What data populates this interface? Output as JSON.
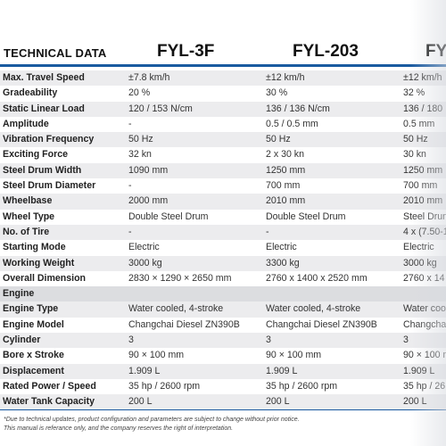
{
  "header": {
    "label": "TECHNICAL DATA",
    "models": [
      "FYL-3F",
      "FYL-203",
      "FY"
    ]
  },
  "rows": [
    {
      "type": "data",
      "cells": [
        "Max. Travel Speed",
        "±7.8 km/h",
        "±12 km/h",
        "±12 km/h"
      ]
    },
    {
      "type": "data",
      "cells": [
        "Gradeability",
        "20 %",
        "30 %",
        "32 %"
      ]
    },
    {
      "type": "data",
      "cells": [
        "Static Linear Load",
        "120 / 153 N/cm",
        "136 / 136 N/cm",
        "136 / 180"
      ]
    },
    {
      "type": "data",
      "cells": [
        "Amplitude",
        "-",
        "0.5 / 0.5 mm",
        "0.5 mm"
      ]
    },
    {
      "type": "data",
      "cells": [
        "Vibration Frequency",
        "50 Hz",
        "50 Hz",
        "50 Hz"
      ]
    },
    {
      "type": "data",
      "cells": [
        "Exciting Force",
        "32 kn",
        "2 x 30 kn",
        "30 kn"
      ]
    },
    {
      "type": "data",
      "cells": [
        "Steel Drum Width",
        "1090 mm",
        "1250 mm",
        "1250 mm"
      ]
    },
    {
      "type": "data",
      "cells": [
        "Steel Drum Diameter",
        "-",
        "700 mm",
        "700 mm"
      ]
    },
    {
      "type": "data",
      "cells": [
        "Wheelbase",
        "2000 mm",
        "2010 mm",
        "2010 mm"
      ]
    },
    {
      "type": "data",
      "cells": [
        "Wheel Type",
        "Double Steel Drum",
        "Double Steel Drum",
        "Steel Drun"
      ]
    },
    {
      "type": "data",
      "cells": [
        "No. of Tire",
        "-",
        "-",
        "4 x (7.50-1"
      ]
    },
    {
      "type": "data",
      "cells": [
        "Starting Mode",
        "Electric",
        "Electric",
        "Electric"
      ]
    },
    {
      "type": "data",
      "cells": [
        "Working Weight",
        "3000 kg",
        "3300 kg",
        "3000 kg"
      ]
    },
    {
      "type": "data",
      "cells": [
        "Overall Dimension",
        "2830 × 1290 × 2650 mm",
        "2760 x 1400 x 2520 mm",
        "2760 x 14"
      ]
    },
    {
      "type": "section",
      "cells": [
        "Engine",
        "",
        "",
        ""
      ]
    },
    {
      "type": "data",
      "cells": [
        "Engine Type",
        "Water cooled, 4-stroke",
        "Water cooled, 4-stroke",
        "Water coo"
      ]
    },
    {
      "type": "data",
      "cells": [
        "Engine Model",
        "Changchai Diesel ZN390B",
        "Changchai Diesel ZN390B",
        "Changchai"
      ]
    },
    {
      "type": "data",
      "cells": [
        "Cylinder",
        "3",
        "3",
        "3"
      ]
    },
    {
      "type": "data",
      "cells": [
        "Bore x Stroke",
        "90 × 100 mm",
        "90 × 100 mm",
        "90 × 100 m"
      ]
    },
    {
      "type": "data",
      "cells": [
        "Displacement",
        "1.909 L",
        "1.909 L",
        "1.909 L"
      ]
    },
    {
      "type": "data",
      "cells": [
        "Rated Power / Speed",
        "35 hp / 2600 rpm",
        "35 hp / 2600 rpm",
        "35 hp / 26"
      ]
    },
    {
      "type": "data",
      "cells": [
        "Water Tank Capacity",
        "200 L",
        "200 L",
        "200 L"
      ]
    }
  ],
  "footnote": {
    "line1": "*Due to technical updates, product configuration and parameters  are subject to change without prior notice.",
    "line2": " This manual is referance only, and the company reserves the right of interpretation."
  },
  "colors": {
    "accent_rule": "#1a5aa0",
    "row_alt": "#ececee",
    "section_row": "#dcdde0"
  }
}
